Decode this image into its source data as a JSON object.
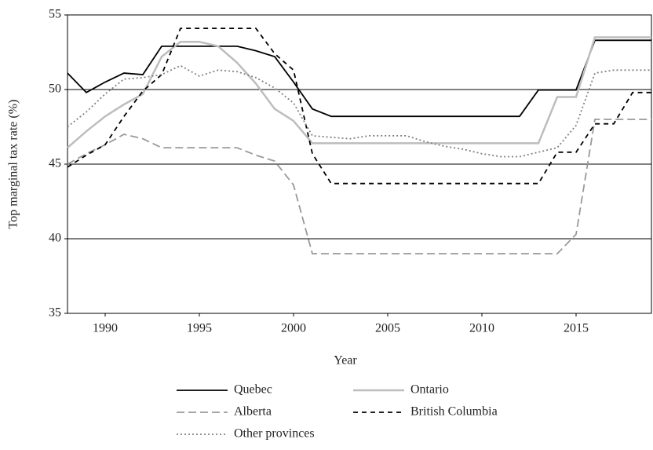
{
  "chart_data": {
    "type": "line",
    "x_label": "Year",
    "y_label": "Top marginal tax rate (%)",
    "x": [
      1988,
      1989,
      1990,
      1991,
      1992,
      1993,
      1994,
      1995,
      1996,
      1997,
      1998,
      1999,
      2000,
      2001,
      2002,
      2003,
      2004,
      2005,
      2006,
      2007,
      2008,
      2009,
      2010,
      2011,
      2012,
      2013,
      2014,
      2015,
      2016,
      2017,
      2018,
      2019
    ],
    "series": [
      {
        "name": "Quebec",
        "color": "#000000",
        "dash": "solid",
        "values": [
          51.1,
          49.8,
          50.5,
          51.1,
          51.0,
          52.9,
          52.9,
          52.9,
          52.9,
          52.9,
          52.6,
          52.2,
          50.5,
          48.7,
          48.2,
          48.2,
          48.2,
          48.2,
          48.2,
          48.2,
          48.2,
          48.2,
          48.2,
          48.2,
          48.2,
          49.97,
          49.97,
          49.97,
          53.3,
          53.3,
          53.3,
          53.3
        ]
      },
      {
        "name": "Ontario",
        "color": "#bdbdbd",
        "dash": "solid",
        "values": [
          46.1,
          47.2,
          48.2,
          49.0,
          49.7,
          52.2,
          53.2,
          53.2,
          52.9,
          51.8,
          50.4,
          48.7,
          47.9,
          46.4,
          46.4,
          46.4,
          46.4,
          46.4,
          46.4,
          46.4,
          46.4,
          46.4,
          46.4,
          46.4,
          46.4,
          46.4,
          49.5,
          49.5,
          53.5,
          53.5,
          53.5,
          53.5
        ]
      },
      {
        "name": "Alberta",
        "color": "#999999",
        "dash": "dashed",
        "values": [
          45.0,
          45.7,
          46.3,
          47.0,
          46.7,
          46.1,
          46.1,
          46.1,
          46.1,
          46.1,
          45.6,
          45.2,
          43.6,
          39.0,
          39.0,
          39.0,
          39.0,
          39.0,
          39.0,
          39.0,
          39.0,
          39.0,
          39.0,
          39.0,
          39.0,
          39.0,
          39.0,
          40.3,
          48.0,
          48.0,
          48.0,
          48.0
        ]
      },
      {
        "name": "British Columbia",
        "color": "#000000",
        "dash": "short-dashed",
        "values": [
          44.8,
          45.6,
          46.3,
          48.2,
          49.9,
          51.0,
          54.1,
          54.1,
          54.1,
          54.1,
          54.1,
          52.4,
          51.3,
          45.7,
          43.7,
          43.7,
          43.7,
          43.7,
          43.7,
          43.7,
          43.7,
          43.7,
          43.7,
          43.7,
          43.7,
          43.7,
          45.8,
          45.8,
          47.7,
          47.7,
          49.8,
          49.8
        ]
      },
      {
        "name": "Other provinces",
        "color": "#808080",
        "dash": "dotted",
        "values": [
          47.5,
          48.5,
          49.7,
          50.7,
          50.8,
          51.0,
          51.6,
          50.9,
          51.3,
          51.2,
          50.8,
          50.1,
          49.1,
          46.9,
          46.8,
          46.7,
          46.9,
          46.9,
          46.9,
          46.5,
          46.2,
          46.0,
          45.7,
          45.5,
          45.5,
          45.8,
          46.1,
          47.6,
          51.1,
          51.3,
          51.3,
          51.3
        ]
      }
    ],
    "xlim": [
      1988,
      2019
    ],
    "xticks": [
      1990,
      1995,
      2000,
      2005,
      2010,
      2015
    ],
    "ylim": [
      35,
      55
    ],
    "yticks": [
      35,
      40,
      45,
      50,
      55
    ],
    "grid": true
  }
}
